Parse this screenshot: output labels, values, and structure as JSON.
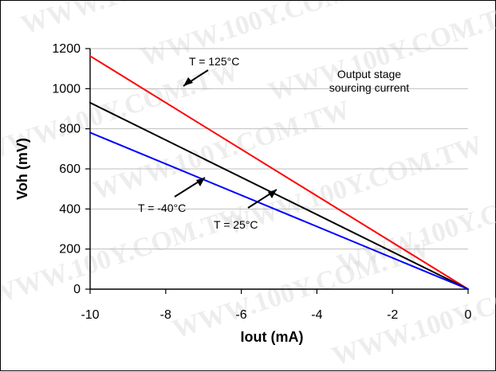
{
  "watermark": "WWW.100Y.COM.TW",
  "chart_data": {
    "type": "line",
    "xlabel": "Iout (mA)",
    "ylabel": "Voh (mV)",
    "xlim": [
      -10,
      0
    ],
    "ylim": [
      0,
      1200
    ],
    "xticks": [
      -10,
      -8,
      -6,
      -4,
      -2,
      0
    ],
    "yticks": [
      0,
      200,
      400,
      600,
      800,
      1000,
      1200
    ],
    "xtick_labels": [
      "-10",
      "-8",
      "-6",
      "-4",
      "-2",
      "0"
    ],
    "ytick_labels": [
      "0",
      "200",
      "400",
      "600",
      "800",
      "1000",
      "1200"
    ],
    "grid": true,
    "legend": "none",
    "colors": {
      "t125": "#ff0000",
      "t25": "#000000",
      "tneg40": "#0000ff",
      "grid": "#bfbfbf"
    },
    "series": [
      {
        "name": "T = 125°C",
        "color": "#ff0000",
        "x": [
          -10,
          0
        ],
        "y": [
          1163,
          0
        ]
      },
      {
        "name": "T = 25°C",
        "color": "#000000",
        "x": [
          -10,
          0
        ],
        "y": [
          930,
          0
        ]
      },
      {
        "name": "T = -40°C",
        "color": "#0000ff",
        "x": [
          -10,
          0
        ],
        "y": [
          781,
          0
        ]
      }
    ],
    "annotations": [
      "T = 125°C",
      "T = -40°C",
      "T = 25°C",
      "Output stage",
      "sourcing current"
    ]
  }
}
